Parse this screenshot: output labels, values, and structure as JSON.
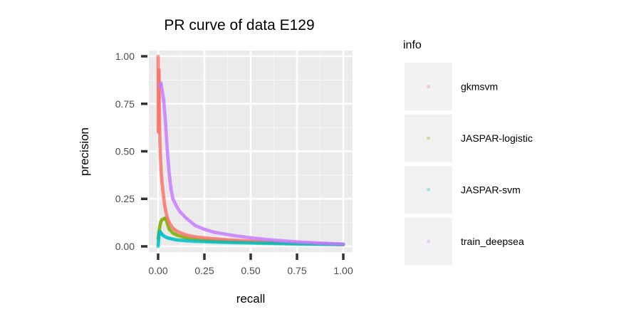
{
  "chart_data": {
    "type": "scatter",
    "title": "PR curve of data E129",
    "xlabel": "recall",
    "ylabel": "precision",
    "xlim": [
      -0.05,
      1.05
    ],
    "ylim": [
      -0.03,
      1.03
    ],
    "x_ticks": [
      0,
      0.25,
      0.5,
      0.75,
      1.0
    ],
    "x_tick_labels": [
      "0.00",
      "0.25",
      "0.50",
      "0.75",
      "1.00"
    ],
    "y_ticks": [
      0,
      0.25,
      0.5,
      0.75,
      1.0
    ],
    "y_tick_labels": [
      "0.00",
      "0.25",
      "0.50",
      "0.75",
      "1.00"
    ],
    "grid": true,
    "legend": {
      "title": "info",
      "position": "right"
    },
    "series": [
      {
        "name": "gkmsvm",
        "color": "#F8766D",
        "points": [
          [
            0.0,
            1.0
          ],
          [
            0.002,
            0.6
          ],
          [
            0.004,
            0.93
          ],
          [
            0.006,
            0.78
          ],
          [
            0.008,
            0.62
          ],
          [
            0.01,
            0.55
          ],
          [
            0.013,
            0.47
          ],
          [
            0.016,
            0.4
          ],
          [
            0.02,
            0.35
          ],
          [
            0.025,
            0.3
          ],
          [
            0.03,
            0.26
          ],
          [
            0.035,
            0.22
          ],
          [
            0.04,
            0.19
          ],
          [
            0.05,
            0.15
          ],
          [
            0.06,
            0.125
          ],
          [
            0.08,
            0.095
          ],
          [
            0.1,
            0.08
          ],
          [
            0.15,
            0.06
          ],
          [
            0.2,
            0.05
          ],
          [
            0.3,
            0.04
          ],
          [
            0.4,
            0.033
          ],
          [
            0.5,
            0.028
          ],
          [
            0.6,
            0.023
          ],
          [
            0.7,
            0.019
          ],
          [
            0.8,
            0.016
          ],
          [
            0.9,
            0.013
          ],
          [
            1.0,
            0.01
          ]
        ]
      },
      {
        "name": "JASPAR-logistic",
        "color": "#7CAE00",
        "points": [
          [
            0.0,
            0.04
          ],
          [
            0.005,
            0.08
          ],
          [
            0.01,
            0.11
          ],
          [
            0.015,
            0.13
          ],
          [
            0.02,
            0.14
          ],
          [
            0.03,
            0.145
          ],
          [
            0.04,
            0.15
          ],
          [
            0.05,
            0.12
          ],
          [
            0.06,
            0.09
          ],
          [
            0.08,
            0.07
          ],
          [
            0.1,
            0.06
          ],
          [
            0.15,
            0.045
          ],
          [
            0.2,
            0.038
          ],
          [
            0.3,
            0.03
          ],
          [
            0.4,
            0.026
          ],
          [
            0.5,
            0.022
          ],
          [
            0.6,
            0.019
          ],
          [
            0.7,
            0.016
          ],
          [
            0.8,
            0.014
          ],
          [
            0.9,
            0.012
          ],
          [
            1.0,
            0.01
          ]
        ]
      },
      {
        "name": "JASPAR-svm",
        "color": "#00BFC4",
        "points": [
          [
            0.0,
            0.0
          ],
          [
            0.002,
            0.03
          ],
          [
            0.005,
            0.06
          ],
          [
            0.01,
            0.08
          ],
          [
            0.015,
            0.07
          ],
          [
            0.02,
            0.065
          ],
          [
            0.03,
            0.055
          ],
          [
            0.05,
            0.045
          ],
          [
            0.08,
            0.038
          ],
          [
            0.1,
            0.034
          ],
          [
            0.15,
            0.03
          ],
          [
            0.2,
            0.027
          ],
          [
            0.3,
            0.023
          ],
          [
            0.4,
            0.02
          ],
          [
            0.5,
            0.018
          ],
          [
            0.6,
            0.016
          ],
          [
            0.7,
            0.014
          ],
          [
            0.8,
            0.012
          ],
          [
            0.9,
            0.011
          ],
          [
            1.0,
            0.01
          ]
        ]
      },
      {
        "name": "train_deepsea",
        "color": "#C77CFF",
        "points": [
          [
            0.01,
            0.84
          ],
          [
            0.015,
            0.86
          ],
          [
            0.02,
            0.83
          ],
          [
            0.03,
            0.77
          ],
          [
            0.04,
            0.65
          ],
          [
            0.05,
            0.5
          ],
          [
            0.06,
            0.38
          ],
          [
            0.07,
            0.3
          ],
          [
            0.08,
            0.25
          ],
          [
            0.1,
            0.21
          ],
          [
            0.12,
            0.18
          ],
          [
            0.15,
            0.15
          ],
          [
            0.2,
            0.11
          ],
          [
            0.25,
            0.09
          ],
          [
            0.3,
            0.075
          ],
          [
            0.4,
            0.058
          ],
          [
            0.5,
            0.045
          ],
          [
            0.6,
            0.035
          ],
          [
            0.7,
            0.027
          ],
          [
            0.8,
            0.021
          ],
          [
            0.9,
            0.016
          ],
          [
            1.0,
            0.012
          ]
        ]
      }
    ]
  }
}
